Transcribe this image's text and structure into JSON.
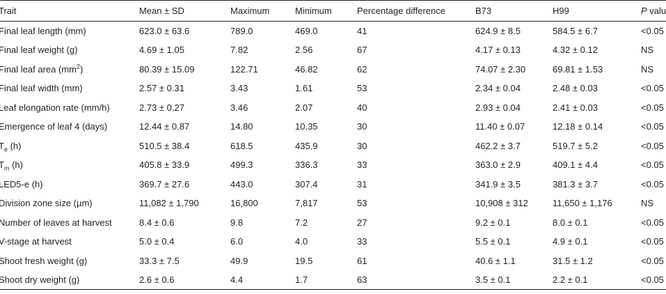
{
  "table": {
    "headers": {
      "trait": "Trait",
      "mean_sd": "Mean ± SD",
      "maximum": "Maximum",
      "minimum": "Minimum",
      "pct_diff": "Percentage difference",
      "b73": "B73",
      "h99": "H99",
      "p_italic": "P",
      "p_rest": " value"
    },
    "rows": [
      {
        "trait": "Final leaf length (mm)",
        "mean_sd": "623.0 ± 63.6",
        "maximum": "789.0",
        "minimum": "469.0",
        "pct_diff": "41",
        "b73": "624.9 ± 8.5",
        "h99": "584.5 ± 6.7",
        "p": "<0.05"
      },
      {
        "trait": "Final leaf weight (g)",
        "mean_sd": "4.69 ± 1.05",
        "maximum": "7.82",
        "minimum": "2.56",
        "pct_diff": "67",
        "b73": "4.17 ± 0.13",
        "h99": "4.32 ± 0.12",
        "p": "NS"
      },
      {
        "trait": "Final leaf area (mm",
        "trait_sup": "2",
        "trait_tail": ")",
        "mean_sd": "80.39 ± 15.09",
        "maximum": "122.71",
        "minimum": "46.82",
        "pct_diff": "62",
        "b73": "74.07 ± 2.30",
        "h99": "69.81 ± 1.53",
        "p": "NS"
      },
      {
        "trait": "Final leaf width (mm)",
        "mean_sd": "2.57 ± 0.31",
        "maximum": "3.43",
        "minimum": "1.61",
        "pct_diff": "53",
        "b73": "2.34 ± 0.04",
        "h99": "2.48 ± 0.03",
        "p": "<0.05"
      },
      {
        "trait": "Leaf elongation rate (mm/h)",
        "mean_sd": "2.73 ± 0.27",
        "maximum": "3.46",
        "minimum": "2.07",
        "pct_diff": "40",
        "b73": "2.93 ± 0.04",
        "h99": "2.41 ± 0.03",
        "p": "<0.05"
      },
      {
        "trait": "Emergence of leaf 4 (days)",
        "mean_sd": "12.44 ± 0.87",
        "maximum": "14.80",
        "minimum": "10.35",
        "pct_diff": "30",
        "b73": "11.40 ± 0.07",
        "h99": "12.18 ± 0.14",
        "p": "<0.05"
      },
      {
        "trait": "T",
        "trait_sub": "e",
        "trait_tail": " (h)",
        "mean_sd": "510.5 ± 38.4",
        "maximum": "618.5",
        "minimum": "435.9",
        "pct_diff": "30",
        "b73": "462.2 ± 3.7",
        "h99": "519.7 ± 5.2",
        "p": "<0.05"
      },
      {
        "trait": "T",
        "trait_sub": "m",
        "trait_tail": " (h)",
        "mean_sd": "405.8 ± 33.9",
        "maximum": "499.3",
        "minimum": "336.3",
        "pct_diff": "33",
        "b73": "363.0 ± 2.9",
        "h99": "409.1 ± 4.4",
        "p": "<0.05"
      },
      {
        "trait": "LED5-e (h)",
        "mean_sd": "369.7 ± 27.6",
        "maximum": "443.0",
        "minimum": "307.4",
        "pct_diff": "31",
        "b73": "341.9 ± 3.5",
        "h99": "381.3 ± 3.7",
        "p": "<0.05"
      },
      {
        "trait": "Division zone size (µm)",
        "mean_sd": "11,082 ± 1,790",
        "maximum": "16,800",
        "minimum": "7,817",
        "pct_diff": "53",
        "b73": "10,908 ± 312",
        "h99": "11,650 ± 1,176",
        "p": "NS"
      },
      {
        "trait": "Number of leaves at harvest",
        "mean_sd": "8.4 ± 0.6",
        "maximum": "9.8",
        "minimum": "7.2",
        "pct_diff": "27",
        "b73": "9.2 ± 0.1",
        "h99": "8.0 ± 0.1",
        "p": "<0.05"
      },
      {
        "trait": "V-stage at harvest",
        "mean_sd": "5.0 ± 0.4",
        "maximum": "6.0",
        "minimum": "4.0",
        "pct_diff": "33",
        "b73": "5.5 ± 0.1",
        "h99": "4.9 ± 0.1",
        "p": "<0.05"
      },
      {
        "trait": "Shoot fresh weight (g)",
        "mean_sd": "33.3 ± 7.5",
        "maximum": "49.9",
        "minimum": "19.5",
        "pct_diff": "61",
        "b73": "40.6 ± 1.1",
        "h99": "31.5 ± 1.2",
        "p": "<0.05"
      },
      {
        "trait": "Shoot dry weight (g)",
        "mean_sd": "2.6 ± 0.6",
        "maximum": "4.4",
        "minimum": "1.7",
        "pct_diff": "63",
        "b73": "3.5 ± 0.1",
        "h99": "2.2 ± 0.1",
        "p": "<0.05"
      }
    ]
  }
}
